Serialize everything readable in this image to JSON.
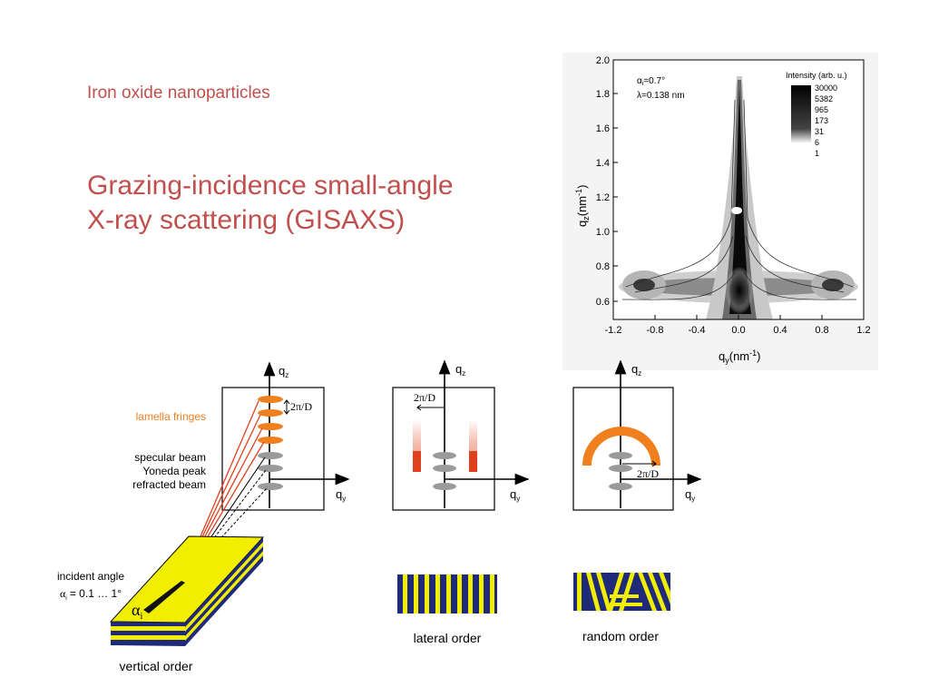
{
  "slide": {
    "subtitle": "Iron oxide nanoparticles",
    "title_line1": "Grazing-incidence small-angle",
    "title_line2": "X-ray scattering (GISAXS)"
  },
  "plot": {
    "alpha_label": "α",
    "alpha_sub": "i",
    "alpha_value": "=0.7°",
    "lambda_label": "λ=0.138 nm",
    "intensity_title": "Intensity (arb. u.)",
    "intensity_levels": [
      "30000",
      "5382",
      "965",
      "173",
      "31",
      "6",
      "1"
    ],
    "x_ticks": [
      "-1.2",
      "-0.8",
      "-0.4",
      "0.0",
      "0.4",
      "0.8",
      "1.2"
    ],
    "y_ticks": [
      "2.0",
      "1.8",
      "1.6",
      "1.4",
      "1.2",
      "1.0",
      "0.8",
      "0.6"
    ],
    "x_label": "q",
    "x_label_sub": "y",
    "x_label_unit": "(nm",
    "x_label_exp": "-1",
    "x_label_close": ")",
    "y_label": "q",
    "y_label_sub": "z",
    "y_label_unit": "(nm",
    "y_label_exp": "-1",
    "y_label_close": ")"
  },
  "diagram": {
    "qz": "q",
    "qz_sub": "z",
    "qy": "q",
    "qy_sub": "y",
    "two_pi_d": "2π/D",
    "lamella_fringes": "lamella fringes",
    "specular_beam": "specular beam",
    "yoneda_peak": "Yoneda peak",
    "refracted_beam": "refracted beam",
    "incident_angle": "incident angle",
    "alpha_range_symbol": "α",
    "alpha_range_sub": "i",
    "alpha_range": "= 0.1 … 1°",
    "alpha_i": "α",
    "alpha_i_sub": "i",
    "vertical_order": "vertical order",
    "lateral_order": "lateral order",
    "random_order": "random order"
  },
  "colors": {
    "accent_red": "#c0504d",
    "orange": "#f07f1e",
    "beam_red": "#e1401e",
    "yellow": "#f2ee00",
    "navy": "#1f2a7a",
    "spot_gray": "#9a9a9a"
  }
}
